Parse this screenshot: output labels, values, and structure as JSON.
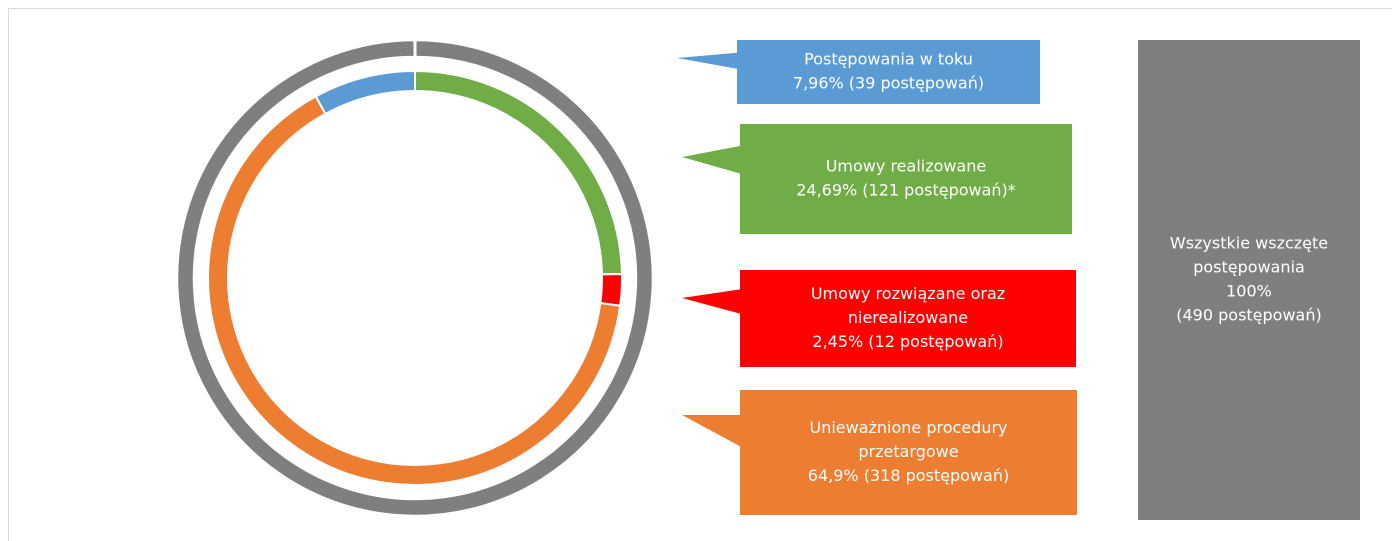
{
  "chart_data": {
    "type": "doughnut",
    "inner": {
      "categories": [
        [
          "Postępowania w toku"
        ],
        [
          "Umowy realizowane"
        ],
        [
          "Umowy rozwiązane oraz",
          "nierealizowane"
        ],
        [
          "Unieważnione procedury",
          "przetargowe"
        ]
      ],
      "values": [
        7.96,
        24.69,
        2.45,
        64.9
      ],
      "value_labels": [
        "7,96% (39 postępowań)",
        "24,69% (121 postępowań)*",
        "2,45% (12 postępowań)",
        "64,9% (318 postępowań)"
      ],
      "colors": [
        "#5b9bd5",
        "#70ad47",
        "#ff0000",
        "#ed7d31"
      ]
    },
    "outer": {
      "name": [
        "Wszystkie wszczęte",
        "postępowania"
      ],
      "values": [
        100
      ],
      "value_labels": [
        [
          "100%",
          "(490 postępowań)"
        ]
      ],
      "color": "#7f7f7f"
    }
  }
}
